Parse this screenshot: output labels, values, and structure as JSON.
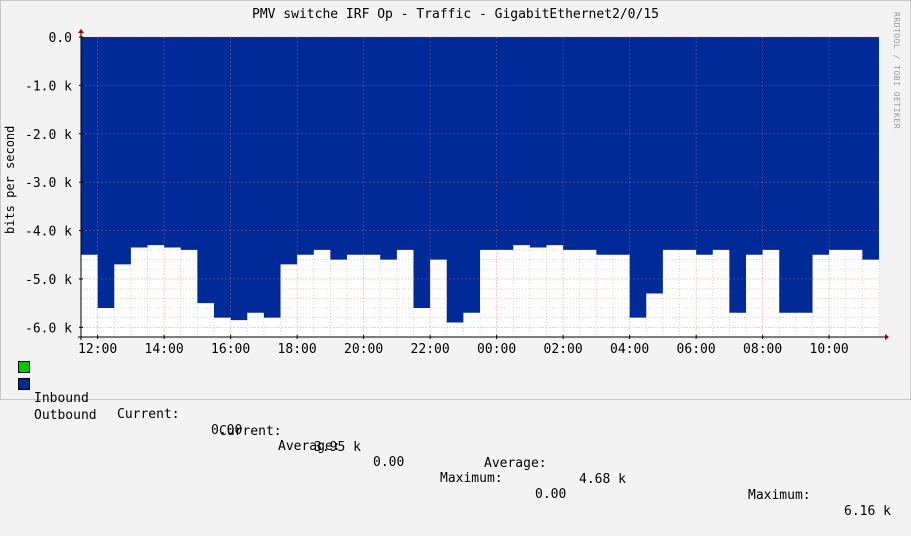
{
  "watermark": "RRDTOOL / TOBI OETIKER",
  "chart_data": {
    "type": "area",
    "title": "PMV switche IRF Op - Traffic - GigabitEthernet2/0/15",
    "ylabel": "bits per second",
    "ylim": [
      -6.2,
      0
    ],
    "y_ticks": [
      "0.0",
      "-1.0 k",
      "-2.0 k",
      "-3.0 k",
      "-4.0 k",
      "-5.0 k",
      "-6.0 k"
    ],
    "x_ticks": [
      "12:00",
      "14:00",
      "16:00",
      "18:00",
      "20:00",
      "22:00",
      "00:00",
      "02:00",
      "04:00",
      "06:00",
      "08:00",
      "10:00"
    ],
    "grid": true,
    "series": [
      {
        "name": "Inbound",
        "color": "#00cc00",
        "values": [
          0.0
        ]
      },
      {
        "name": "Outbound",
        "color": "#002a97",
        "x_hours": [
          11.5,
          12.0,
          12.5,
          13.0,
          13.5,
          14.0,
          14.5,
          15.0,
          15.5,
          16.0,
          16.5,
          17.0,
          17.5,
          18.0,
          18.5,
          19.0,
          19.5,
          20.0,
          20.5,
          21.0,
          21.5,
          22.0,
          22.5,
          23.0,
          23.5,
          24.0,
          24.5,
          25.0,
          25.5,
          26.0,
          26.5,
          27.0,
          27.5,
          28.0,
          28.5,
          29.0,
          29.5,
          30.0,
          30.5,
          31.0,
          31.5,
          32.0,
          32.5,
          33.0,
          33.5,
          34.0,
          34.5,
          35.0,
          35.5
        ],
        "values": [
          -4.5,
          -5.6,
          -4.7,
          -4.35,
          -4.3,
          -4.35,
          -4.4,
          -5.5,
          -5.8,
          -5.85,
          -5.7,
          -5.8,
          -4.7,
          -4.5,
          -4.4,
          -4.6,
          -4.5,
          -4.5,
          -4.6,
          -4.4,
          -5.6,
          -4.6,
          -5.9,
          -5.7,
          -4.4,
          -4.4,
          -4.3,
          -4.35,
          -4.3,
          -4.4,
          -4.4,
          -4.5,
          -4.5,
          -5.8,
          -5.3,
          -4.4,
          -4.4,
          -4.5,
          -4.4,
          -5.7,
          -4.5,
          -4.4,
          -5.7,
          -5.7,
          -4.5,
          -4.4,
          -4.4,
          -4.6,
          -4.3
        ],
        "current": "3.95 k",
        "average": "4.68 k",
        "maximum": "6.16 k"
      }
    ]
  },
  "legend": {
    "inbound": {
      "label": "Inbound",
      "current_label": "Current:",
      "current": "0.00",
      "average_label": "Average:",
      "average": "0.00",
      "maximum_label": "Maximum:",
      "maximum": "0.00"
    },
    "outbound": {
      "label": "Outbound",
      "current_label": "Current:",
      "current": "3.95 k",
      "average_label": "Average:",
      "average": "4.68 k",
      "maximum_label": "Maximum:",
      "maximum": "6.16 k"
    }
  }
}
